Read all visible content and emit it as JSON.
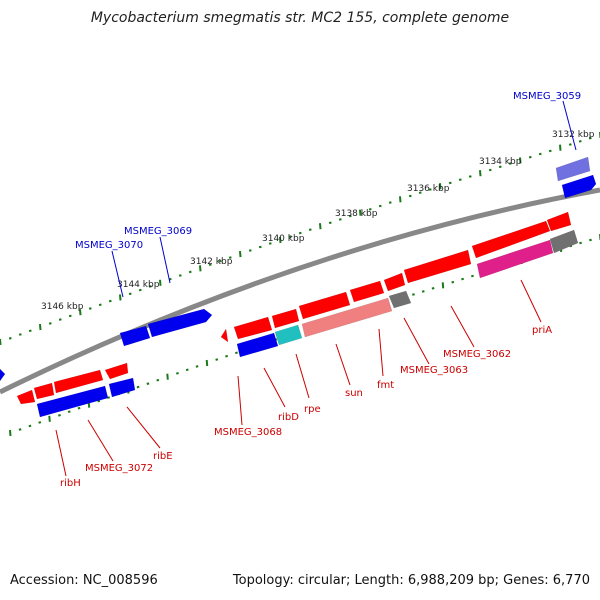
{
  "title": "Mycobacterium smegmatis str. MC2 155, complete genome",
  "accession": "Accession: NC_008596",
  "stats": "Topology: circular; Length: 6,988,209 bp; Genes: 6,770",
  "colors": {
    "backbone": "#888888",
    "tick_dots": "#1a7a1a",
    "cds_forward": "#ff0000",
    "cds_reverse": "#0000ee",
    "overlap_pink": "#f08080",
    "overlap_magenta": "#e0208a",
    "overlap_purple": "#7070e0",
    "overlap_cyan": "#20c0c0",
    "overlap_gray": "#707070",
    "label_forward": "#0000cc",
    "label_reverse": "#cc0000"
  },
  "scale_labels": [
    "3132 kbp",
    "3134 kbp",
    "3136 kbp",
    "3138 kbp",
    "3140 kbp",
    "3142 kbp",
    "3144 kbp",
    "3146 kbp"
  ],
  "gene_labels_top": [
    "MSMEG_3059",
    "MSMEG_3069",
    "MSMEG_3070"
  ],
  "gene_labels_bottom": [
    "priA",
    "MSMEG_3062",
    "MSMEG_3063",
    "fmt",
    "sun",
    "rpe",
    "ribD",
    "MSMEG_3068",
    "ribE",
    "MSMEG_3072",
    "ribH"
  ]
}
